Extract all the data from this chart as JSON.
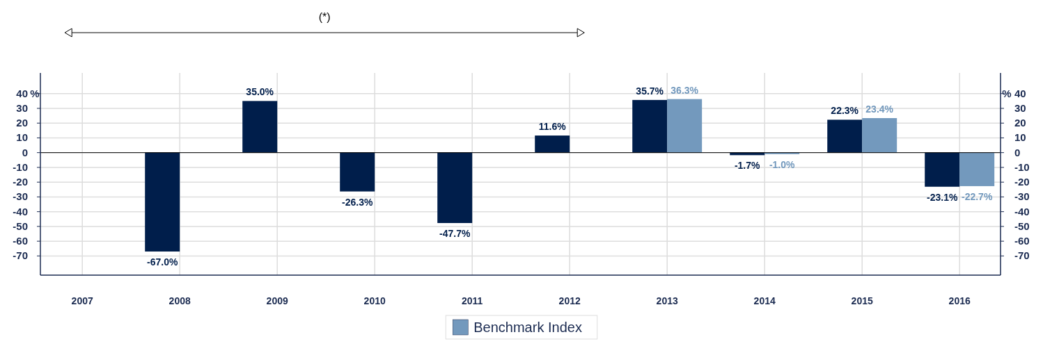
{
  "chart_data": {
    "type": "bar",
    "categories": [
      "2007",
      "2008",
      "2009",
      "2010",
      "2011",
      "2012",
      "2013",
      "2014",
      "2015",
      "2016"
    ],
    "series": [
      {
        "color": "#001e4b",
        "values": [
          null,
          -67.0,
          35.0,
          -26.3,
          -47.7,
          11.6,
          35.7,
          -1.7,
          22.3,
          -23.1
        ],
        "value_labels": [
          null,
          "-67.0%",
          "35.0%",
          "-26.3%",
          "-47.7%",
          "11.6%",
          "35.7%",
          "-1.7%",
          "22.3%",
          "-23.1%"
        ]
      },
      {
        "name": "Benchmark Index",
        "color": "#7399bd",
        "values": [
          null,
          null,
          null,
          null,
          null,
          null,
          36.3,
          -1.0,
          23.4,
          -22.7
        ],
        "value_labels": [
          null,
          null,
          null,
          null,
          null,
          null,
          "36.3%",
          "-1.0%",
          "23.4%",
          "-22.7%"
        ]
      }
    ],
    "ylim": [
      -83,
      54
    ],
    "yticks": [
      -70,
      -60,
      -50,
      -40,
      -30,
      -20,
      -10,
      0,
      10,
      20,
      30,
      40
    ],
    "y2lim": [
      -83,
      54
    ],
    "y2ticks": [
      -70,
      -60,
      -50,
      -40,
      -30,
      -20,
      -10,
      0,
      10,
      20,
      30,
      40
    ],
    "ylabel": "%",
    "y2label": "%",
    "annotations": [
      "(*)"
    ],
    "grid": true,
    "legend": "bottom"
  }
}
